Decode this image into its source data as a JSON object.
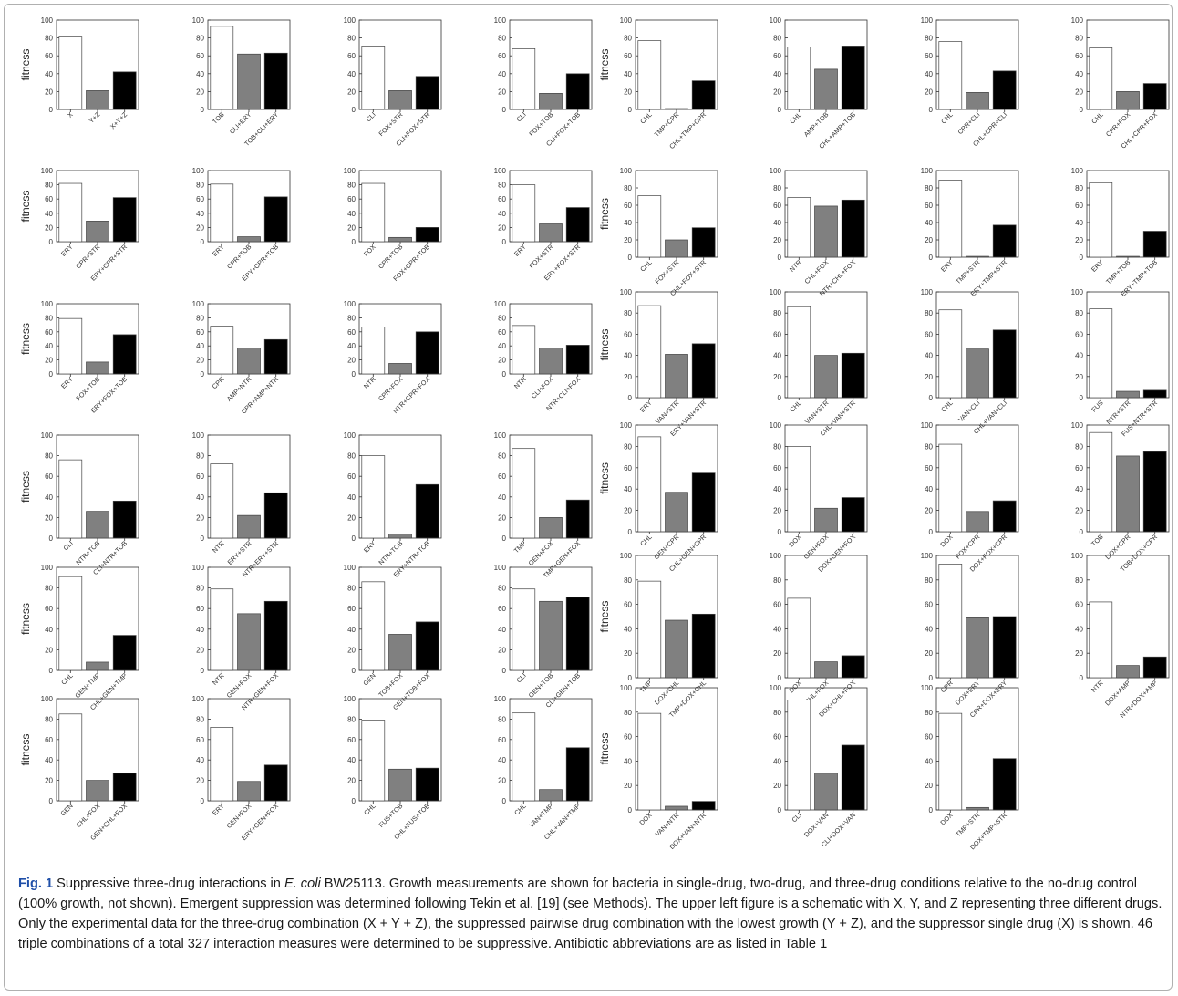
{
  "figure": {
    "label": "Fig. 1",
    "caption_part1": "Suppressive three-drug interactions in ",
    "caption_species": "E. coli",
    "caption_part2": " BW25113. Growth measurements are shown for bacteria in single-drug, two-drug, and three-drug conditions relative to the no-drug control (100% growth, not shown). Emergent suppression was determined following Tekin et al. [19] (see Methods). The upper left figure is a schematic with X, Y, and Z representing three different drugs. Only the experimental data for the three-drug combination (X + Y + Z), the suppressed pairwise drug combination with the lowest growth (Y + Z), and the suppressor single drug (X) is shown. 46 triple combinations of a total 327 interaction measures were determined to be suppressive. Antibiotic abbreviations are as listed in Table 1"
  },
  "colors": {
    "single": "#ffffff",
    "pair": "#808080",
    "triple": "#000000",
    "axis": "#333333"
  },
  "chart_common": {
    "ylabel": "fitness",
    "ylim": [
      0,
      100
    ],
    "yticks": [
      0,
      20,
      40,
      60,
      80,
      100
    ]
  },
  "chart_data": [
    {
      "type": "bar",
      "categories": [
        "X",
        "Y+Z",
        "X+Y+Z"
      ],
      "values": [
        81,
        21,
        42
      ],
      "ylim": [
        0,
        100
      ]
    },
    {
      "type": "bar",
      "categories": [
        "TOB",
        "CLI+ERY",
        "TOB+CLI+ERY"
      ],
      "values": [
        93,
        62,
        63
      ],
      "ylim": [
        0,
        100
      ]
    },
    {
      "type": "bar",
      "categories": [
        "CLI",
        "FOX+STR",
        "CLI+FOX+STR"
      ],
      "values": [
        71,
        21,
        37
      ],
      "ylim": [
        0,
        100
      ]
    },
    {
      "type": "bar",
      "categories": [
        "CLI",
        "FOX+TOB",
        "CLI+FOX+TOB"
      ],
      "values": [
        68,
        18,
        40
      ],
      "ylim": [
        0,
        100
      ]
    },
    {
      "type": "bar",
      "categories": [
        "CHL",
        "TMP+CPR",
        "CHL+TMP+CPR"
      ],
      "values": [
        77,
        1,
        32
      ],
      "ylim": [
        0,
        100
      ]
    },
    {
      "type": "bar",
      "categories": [
        "CHL",
        "AMP+TOB",
        "CHL+AMP+TOB"
      ],
      "values": [
        70,
        45,
        71
      ],
      "ylim": [
        0,
        100
      ]
    },
    {
      "type": "bar",
      "categories": [
        "CHL",
        "CPR+CLI",
        "CHL+CPR+CLI"
      ],
      "values": [
        76,
        19,
        43
      ],
      "ylim": [
        0,
        100
      ]
    },
    {
      "type": "bar",
      "categories": [
        "CHL",
        "CPR+FOX",
        "CHL+CPR+FOX"
      ],
      "values": [
        69,
        20,
        29
      ],
      "ylim": [
        0,
        100
      ]
    },
    {
      "type": "bar",
      "categories": [
        "ERY",
        "CPR+STR",
        "ERY+CPR+STR"
      ],
      "values": [
        82,
        29,
        62
      ],
      "ylim": [
        0,
        100
      ]
    },
    {
      "type": "bar",
      "categories": [
        "ERY",
        "CPR+TOB",
        "ERY+CPR+TOB"
      ],
      "values": [
        81,
        7,
        63
      ],
      "ylim": [
        0,
        100
      ]
    },
    {
      "type": "bar",
      "categories": [
        "FOX",
        "CPR+TOB",
        "FOX+CPR+TOB"
      ],
      "values": [
        82,
        6,
        20
      ],
      "ylim": [
        0,
        100
      ]
    },
    {
      "type": "bar",
      "categories": [
        "ERY",
        "FOX+STR",
        "ERY+FOX+STR"
      ],
      "values": [
        80,
        25,
        48
      ],
      "ylim": [
        0,
        100
      ]
    },
    {
      "type": "bar",
      "categories": [
        "CHL",
        "FOX+STR",
        "CHL+FOX+STR"
      ],
      "values": [
        71,
        20,
        34
      ],
      "ylim": [
        0,
        100
      ]
    },
    {
      "type": "bar",
      "categories": [
        "NTR",
        "CHL+FOX",
        "NTR+CHL+FOX"
      ],
      "values": [
        69,
        59,
        66
      ],
      "ylim": [
        0,
        100
      ]
    },
    {
      "type": "bar",
      "categories": [
        "ERY",
        "TMP+STR",
        "ERY+TMP+STR"
      ],
      "values": [
        89,
        1,
        37
      ],
      "ylim": [
        0,
        100
      ]
    },
    {
      "type": "bar",
      "categories": [
        "ERY",
        "TMP+TOB",
        "ERY+TMP+TOB"
      ],
      "values": [
        86,
        1,
        30
      ],
      "ylim": [
        0,
        100
      ]
    },
    {
      "type": "bar",
      "categories": [
        "ERY",
        "FOX+TOB",
        "ERY+FOX+TOB"
      ],
      "values": [
        79,
        17,
        56
      ],
      "ylim": [
        0,
        100
      ]
    },
    {
      "type": "bar",
      "categories": [
        "CPR",
        "AMP+NTR",
        "CPR+AMP+NTR"
      ],
      "values": [
        68,
        37,
        49
      ],
      "ylim": [
        0,
        100
      ]
    },
    {
      "type": "bar",
      "categories": [
        "NTR",
        "CPR+FOX",
        "NTR+CPR+FOX"
      ],
      "values": [
        67,
        15,
        60
      ],
      "ylim": [
        0,
        100
      ]
    },
    {
      "type": "bar",
      "categories": [
        "NTR",
        "CLI+FOX",
        "NTR+CLI+FOX"
      ],
      "values": [
        69,
        37,
        41
      ],
      "ylim": [
        0,
        100
      ]
    },
    {
      "type": "bar",
      "categories": [
        "ERY",
        "VAN+STR",
        "ERY+VAN+STR"
      ],
      "values": [
        87,
        41,
        51
      ],
      "ylim": [
        0,
        100
      ]
    },
    {
      "type": "bar",
      "categories": [
        "CHL",
        "VAN+STR",
        "CHL+VAN+STR"
      ],
      "values": [
        86,
        40,
        42
      ],
      "ylim": [
        0,
        100
      ]
    },
    {
      "type": "bar",
      "categories": [
        "CHL",
        "VAN+CLI",
        "CHL+VAN+CLI"
      ],
      "values": [
        83,
        46,
        64
      ],
      "ylim": [
        0,
        100
      ]
    },
    {
      "type": "bar",
      "categories": [
        "FUS",
        "NTR+STR",
        "FUS+NTR+STR"
      ],
      "values": [
        84,
        6,
        7
      ],
      "ylim": [
        0,
        100
      ]
    },
    {
      "type": "bar",
      "categories": [
        "CLI",
        "NTR+TOB",
        "CLI+NTR+TOB"
      ],
      "values": [
        76,
        26,
        36
      ],
      "ylim": [
        0,
        100
      ]
    },
    {
      "type": "bar",
      "categories": [
        "NTR",
        "ERY+STR",
        "NTR+ERY+STR"
      ],
      "values": [
        72,
        22,
        44
      ],
      "ylim": [
        0,
        100
      ]
    },
    {
      "type": "bar",
      "categories": [
        "ERY",
        "NTR+TOB",
        "ERY+NTR+TOB"
      ],
      "values": [
        80,
        4,
        52
      ],
      "ylim": [
        0,
        100
      ]
    },
    {
      "type": "bar",
      "categories": [
        "TMP",
        "GEN+FOX",
        "TMP+GEN+FOX"
      ],
      "values": [
        87,
        20,
        37
      ],
      "ylim": [
        0,
        100
      ]
    },
    {
      "type": "bar",
      "categories": [
        "CHL",
        "GEN+CPR",
        "CHL+GEN+CPR"
      ],
      "values": [
        89,
        37,
        55
      ],
      "ylim": [
        0,
        100
      ]
    },
    {
      "type": "bar",
      "categories": [
        "DOX",
        "GEN+FOX",
        "DOX+GEN+FOX"
      ],
      "values": [
        80,
        22,
        32
      ],
      "ylim": [
        0,
        100
      ]
    },
    {
      "type": "bar",
      "categories": [
        "DOX",
        "FOX+CPR",
        "DOX+FOX+CPR"
      ],
      "values": [
        82,
        19,
        29
      ],
      "ylim": [
        0,
        100
      ]
    },
    {
      "type": "bar",
      "categories": [
        "TOB",
        "DOX+CPR",
        "TOB+DOX+CPR"
      ],
      "values": [
        93,
        71,
        75
      ],
      "ylim": [
        0,
        100
      ]
    },
    {
      "type": "bar",
      "categories": [
        "CHL",
        "GEN+TMP",
        "CHL+GEN+TMP"
      ],
      "values": [
        91,
        8,
        34
      ],
      "ylim": [
        0,
        100
      ]
    },
    {
      "type": "bar",
      "categories": [
        "NTR",
        "GEN+FOX",
        "NTR+GEN+FOX"
      ],
      "values": [
        79,
        55,
        67
      ],
      "ylim": [
        0,
        100
      ]
    },
    {
      "type": "bar",
      "categories": [
        "GEN",
        "TOB+FOX",
        "GEN+TOB+FOX"
      ],
      "values": [
        86,
        35,
        47
      ],
      "ylim": [
        0,
        100
      ]
    },
    {
      "type": "bar",
      "categories": [
        "CLI",
        "GEN+TOB",
        "CLI+GEN+TOB"
      ],
      "values": [
        79,
        67,
        71
      ],
      "ylim": [
        0,
        100
      ]
    },
    {
      "type": "bar",
      "categories": [
        "TMP",
        "DOX+CHL",
        "TMP+DOX+CHL"
      ],
      "values": [
        79,
        47,
        52
      ],
      "ylim": [
        0,
        100
      ]
    },
    {
      "type": "bar",
      "categories": [
        "DOX",
        "CHL+FOX",
        "DOX+CHL+FOX"
      ],
      "values": [
        65,
        13,
        18
      ],
      "ylim": [
        0,
        100
      ]
    },
    {
      "type": "bar",
      "categories": [
        "CPR",
        "DOX+ERY",
        "CPR+DOX+ERY"
      ],
      "values": [
        93,
        49,
        50
      ],
      "ylim": [
        0,
        100
      ]
    },
    {
      "type": "bar",
      "categories": [
        "NTR",
        "DOX+AMP",
        "NTR+DOX+AMP"
      ],
      "values": [
        62,
        10,
        17
      ],
      "ylim": [
        0,
        100
      ]
    },
    {
      "type": "bar",
      "categories": [
        "GEN",
        "CHL+FOX",
        "GEN+CHL+FOX"
      ],
      "values": [
        85,
        20,
        27
      ],
      "ylim": [
        0,
        100
      ]
    },
    {
      "type": "bar",
      "categories": [
        "ERY",
        "GEN+FOX",
        "ERY+GEN+FOX"
      ],
      "values": [
        72,
        19,
        35
      ],
      "ylim": [
        0,
        100
      ]
    },
    {
      "type": "bar",
      "categories": [
        "CHL",
        "FUS+TOB",
        "CHL+FUS+TOB"
      ],
      "values": [
        79,
        31,
        32
      ],
      "ylim": [
        0,
        100
      ]
    },
    {
      "type": "bar",
      "categories": [
        "CHL",
        "VAN+TMP",
        "CHL+VAN+TMP"
      ],
      "values": [
        86,
        11,
        52
      ],
      "ylim": [
        0,
        100
      ]
    },
    {
      "type": "bar",
      "categories": [
        "DOX",
        "VAN+NTR",
        "DOX+VAN+NTR"
      ],
      "values": [
        79,
        3,
        7
      ],
      "ylim": [
        0,
        100
      ]
    },
    {
      "type": "bar",
      "categories": [
        "CLI",
        "DOX+VAN",
        "CLI+DOX+VAN"
      ],
      "values": [
        90,
        30,
        53
      ],
      "ylim": [
        0,
        100
      ]
    },
    {
      "type": "bar",
      "categories": [
        "DOX",
        "TMP+STR",
        "DOX+TMP+STR"
      ],
      "values": [
        79,
        2,
        42
      ],
      "ylim": [
        0,
        100
      ]
    }
  ]
}
